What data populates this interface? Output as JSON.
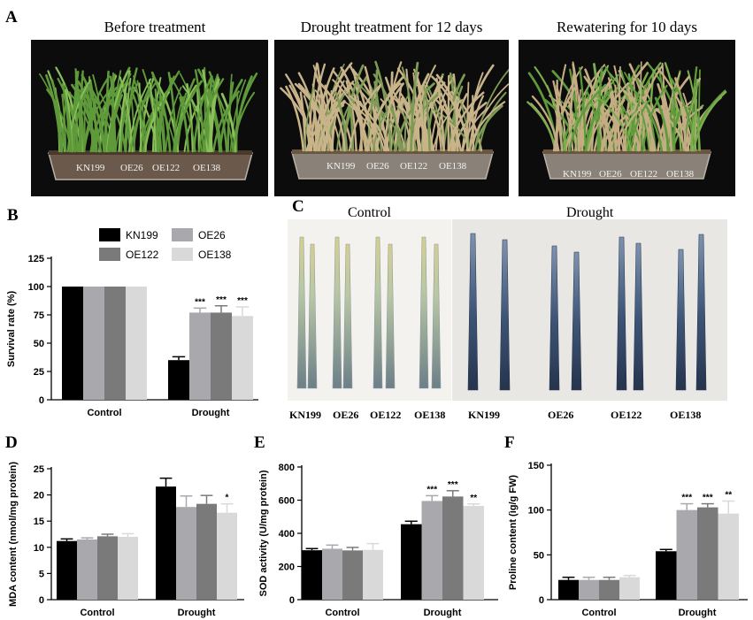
{
  "panel_letters": [
    "A",
    "B",
    "C",
    "D",
    "E",
    "F"
  ],
  "panel_a": {
    "photos": [
      {
        "title": "Before treatment",
        "state": "green",
        "labels": [
          "KN199",
          "OE26",
          "OE122",
          "OE138"
        ]
      },
      {
        "title": "Drought treatment for 12 days",
        "state": "dry",
        "labels": [
          "KN199",
          "OE26",
          "OE122",
          "OE138"
        ]
      },
      {
        "title": "Rewatering for 10 days",
        "state": "rewatered",
        "labels": [
          "KN199",
          "OE26",
          "OE122",
          "OE138"
        ]
      }
    ]
  },
  "panel_c": {
    "control_header": "Control",
    "drought_header": "Drought",
    "labels": [
      "KN199",
      "OE26",
      "OE122",
      "OE138",
      "KN199",
      "OE26",
      "OE122",
      "OE138"
    ]
  },
  "colors": {
    "KN199": "#000000",
    "OE26": "#a8a8ad",
    "OE122": "#7a7a7a",
    "OE138": "#d9d9d9"
  },
  "chart_data": [
    {
      "panel": "B",
      "type": "bar",
      "ylabel": "Survival rate (%)",
      "ylim": [
        0,
        125
      ],
      "yticks": [
        0,
        25,
        50,
        75,
        100,
        125
      ],
      "legend_placement": "top",
      "categories": [
        "Control",
        "Drought"
      ],
      "series": [
        {
          "name": "KN199",
          "values": [
            100,
            35
          ],
          "errors": [
            0,
            3
          ],
          "sig": [
            "",
            ""
          ]
        },
        {
          "name": "OE26",
          "values": [
            100,
            77
          ],
          "errors": [
            0,
            4
          ],
          "sig": [
            "",
            "***"
          ]
        },
        {
          "name": "OE122",
          "values": [
            100,
            77
          ],
          "errors": [
            0,
            6
          ],
          "sig": [
            "",
            "***"
          ]
        },
        {
          "name": "OE138",
          "values": [
            100,
            74
          ],
          "errors": [
            0,
            8
          ],
          "sig": [
            "",
            "***"
          ]
        }
      ]
    },
    {
      "panel": "D",
      "type": "bar",
      "ylabel": "MDA content (nmol/mg protein)",
      "ylim": [
        0,
        25
      ],
      "yticks": [
        0,
        5,
        10,
        15,
        20,
        25
      ],
      "categories": [
        "Control",
        "Drought"
      ],
      "series": [
        {
          "name": "KN199",
          "values": [
            11.2,
            21.6
          ],
          "errors": [
            0.4,
            1.6
          ],
          "sig": [
            "",
            ""
          ]
        },
        {
          "name": "OE26",
          "values": [
            11.5,
            17.7
          ],
          "errors": [
            0.3,
            2.1
          ],
          "sig": [
            "",
            ""
          ]
        },
        {
          "name": "OE122",
          "values": [
            12.1,
            18.3
          ],
          "errors": [
            0.4,
            1.6
          ],
          "sig": [
            "",
            ""
          ]
        },
        {
          "name": "OE138",
          "values": [
            12.0,
            16.6
          ],
          "errors": [
            0.6,
            1.7
          ],
          "sig": [
            "",
            "*"
          ]
        }
      ]
    },
    {
      "panel": "E",
      "type": "bar",
      "ylabel": "SOD activity (U/mg protein)",
      "ylim": [
        0,
        800
      ],
      "yticks": [
        0,
        200,
        400,
        600,
        800
      ],
      "categories": [
        "Control",
        "Drought"
      ],
      "series": [
        {
          "name": "KN199",
          "values": [
            298,
            455
          ],
          "errors": [
            10,
            18
          ],
          "sig": [
            "",
            ""
          ]
        },
        {
          "name": "OE26",
          "values": [
            307,
            595
          ],
          "errors": [
            22,
            32
          ],
          "sig": [
            "",
            "***"
          ]
        },
        {
          "name": "OE122",
          "values": [
            297,
            622
          ],
          "errors": [
            18,
            35
          ],
          "sig": [
            "",
            "***"
          ]
        },
        {
          "name": "OE138",
          "values": [
            300,
            565
          ],
          "errors": [
            38,
            12
          ],
          "sig": [
            "",
            "**"
          ]
        }
      ]
    },
    {
      "panel": "F",
      "type": "bar",
      "ylabel": "Proline content (ìg/g FW)",
      "ylim": [
        0,
        150
      ],
      "yticks": [
        0,
        50,
        100,
        150
      ],
      "categories": [
        "Control",
        "Drought"
      ],
      "series": [
        {
          "name": "KN199",
          "values": [
            22,
            54
          ],
          "errors": [
            3,
            2
          ],
          "sig": [
            "",
            ""
          ]
        },
        {
          "name": "OE26",
          "values": [
            22,
            100
          ],
          "errors": [
            3,
            7
          ],
          "sig": [
            "",
            "***"
          ]
        },
        {
          "name": "OE122",
          "values": [
            22,
            103
          ],
          "errors": [
            3,
            4
          ],
          "sig": [
            "",
            "***"
          ]
        },
        {
          "name": "OE138",
          "values": [
            25,
            96
          ],
          "errors": [
            2,
            14
          ],
          "sig": [
            "",
            "**"
          ]
        }
      ]
    }
  ]
}
